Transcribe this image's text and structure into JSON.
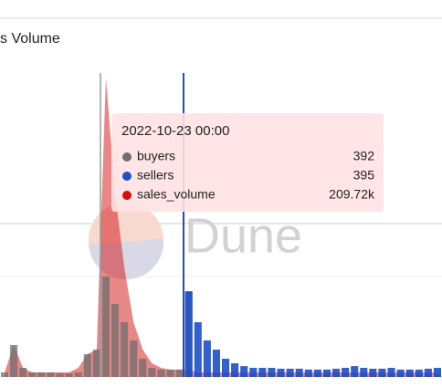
{
  "chart_data": {
    "type": "bar",
    "title": "s Volume",
    "watermark": "Dune",
    "categories": [
      null,
      null,
      null,
      null,
      null,
      null,
      null,
      null,
      null,
      null,
      null,
      null,
      null,
      null,
      null,
      null,
      null,
      null,
      null,
      null,
      null,
      null,
      null,
      null,
      null,
      null,
      null,
      null,
      null,
      null,
      null,
      null,
      null,
      null,
      null,
      null,
      null,
      null,
      null,
      null,
      null,
      null,
      null,
      null,
      null,
      null,
      null,
      null
    ],
    "ylim": [
      0,
      1400
    ],
    "y2lim": [
      0,
      9000000
    ],
    "series": [
      {
        "name": "buyers",
        "color": "#6e6e6e",
        "values": [
          21,
          147,
          42,
          21,
          21,
          21,
          17,
          17,
          21,
          105,
          126,
          462,
          336,
          252,
          168,
          84,
          42,
          34,
          34,
          34,
          392,
          13,
          13,
          13,
          13,
          13,
          13,
          13,
          13,
          13,
          13,
          13,
          13,
          13,
          13,
          13,
          13,
          13,
          13,
          13,
          13,
          13,
          13,
          13,
          13,
          13,
          13,
          13
        ]
      },
      {
        "name": "sellers",
        "color": "#1d4fc4",
        "values": [
          0,
          0,
          0,
          0,
          0,
          0,
          0,
          0,
          0,
          0,
          0,
          0,
          0,
          0,
          0,
          0,
          0,
          0,
          0,
          0,
          395,
          252,
          168,
          126,
          84,
          63,
          50,
          42,
          42,
          42,
          38,
          38,
          38,
          34,
          34,
          34,
          38,
          42,
          50,
          42,
          38,
          38,
          42,
          34,
          34,
          34,
          38,
          42
        ]
      },
      {
        "name": "sales_volume",
        "color": "#d40f0f",
        "axis": "y2",
        "values": [
          135000,
          946000,
          270000,
          135000,
          135000,
          135000,
          135000,
          135000,
          270000,
          676000,
          811000,
          8870000,
          5410000,
          3240000,
          1620000,
          811000,
          405000,
          270000,
          216000,
          216000,
          209720,
          135000,
          135000,
          135000,
          135000,
          135000,
          135000,
          135000,
          135000,
          135000,
          135000,
          135000,
          135000,
          135000,
          135000,
          135000,
          135000,
          135000,
          135000,
          135000,
          135000,
          135000,
          135000,
          135000,
          135000,
          135000,
          135000,
          135000
        ]
      }
    ],
    "tooltip": {
      "title": "2022-10-23 00:00",
      "items": [
        {
          "name": "buyers",
          "color": "#6e6e6e",
          "value": 392
        },
        {
          "name": "sellers",
          "color": "#1d4fc4",
          "value": 395
        },
        {
          "name": "sales_volume",
          "color": "#d40f0f",
          "value": {
            "value": 209720,
            "label": "209.72k"
          }
        }
      ]
    }
  }
}
